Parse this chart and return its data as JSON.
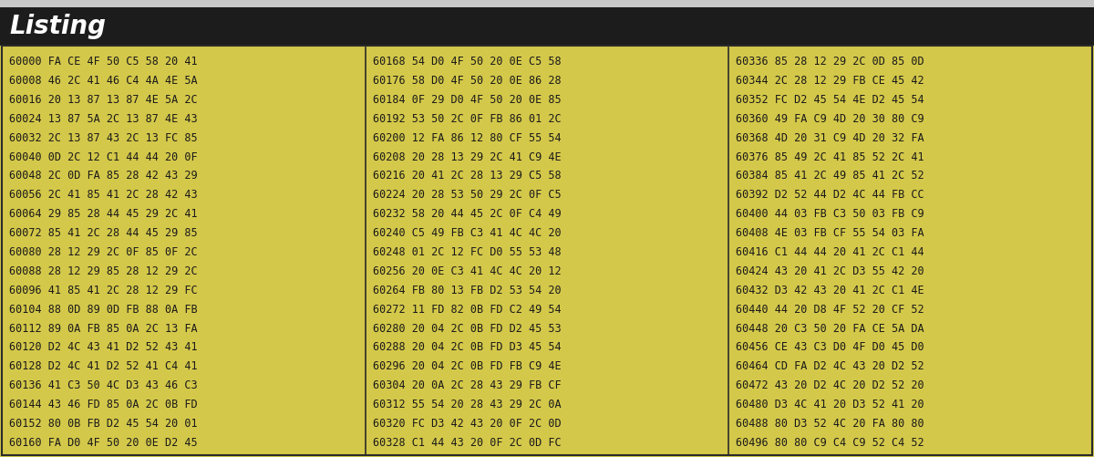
{
  "title": "Listing",
  "top_bar_color": "#c8c8c8",
  "title_bg": "#1c1c1c",
  "title_color": "#ffffff",
  "body_bg": "#d4c84a",
  "text_color": "#1a1a1a",
  "border_color": "#2a2a2a",
  "divider_color": "#2a2a2a",
  "font_size": 8.5,
  "title_font_size": 20,
  "top_bar_height": 8,
  "title_bar_height": 42,
  "columns": [
    [
      "60000 FA CE 4F 50 C5 58 20 41",
      "60008 46 2C 41 46 C4 4A 4E 5A",
      "60016 20 13 87 13 87 4E 5A 2C",
      "60024 13 87 5A 2C 13 87 4E 43",
      "60032 2C 13 87 43 2C 13 FC 85",
      "60040 0D 2C 12 C1 44 44 20 0F",
      "60048 2C 0D FA 85 28 42 43 29",
      "60056 2C 41 85 41 2C 28 42 43",
      "60064 29 85 28 44 45 29 2C 41",
      "60072 85 41 2C 28 44 45 29 85",
      "60080 28 12 29 2C 0F 85 0F 2C",
      "60088 28 12 29 85 28 12 29 2C",
      "60096 41 85 41 2C 28 12 29 FC",
      "60104 88 0D 89 0D FB 88 0A FB",
      "60112 89 0A FB 85 0A 2C 13 FA",
      "60120 D2 4C 43 41 D2 52 43 41",
      "60128 D2 4C 41 D2 52 41 C4 41",
      "60136 41 C3 50 4C D3 43 46 C3",
      "60144 43 46 FD 85 0A 2C 0B FD",
      "60152 80 0B FB D2 45 54 20 01",
      "60160 FA D0 4F 50 20 0E D2 45"
    ],
    [
      "60168 54 D0 4F 50 20 0E C5 58",
      "60176 58 D0 4F 50 20 0E 86 28",
      "60184 0F 29 D0 4F 50 20 0E 85",
      "60192 53 50 2C 0F FB 86 01 2C",
      "60200 12 FA 86 12 80 CF 55 54",
      "60208 20 28 13 29 2C 41 C9 4E",
      "60216 20 41 2C 28 13 29 C5 58",
      "60224 20 28 53 50 29 2C 0F C5",
      "60232 58 20 44 45 2C 0F C4 49",
      "60240 C5 49 FB C3 41 4C 4C 20",
      "60248 01 2C 12 FC D0 55 53 48",
      "60256 20 0E C3 41 4C 4C 20 12",
      "60264 FB 80 13 FB D2 53 54 20",
      "60272 11 FD 82 0B FD C2 49 54",
      "60280 20 04 2C 0B FD D2 45 53",
      "60288 20 04 2C 0B FD D3 45 54",
      "60296 20 04 2C 0B FD FB C9 4E",
      "60304 20 0A 2C 28 43 29 FB CF",
      "60312 55 54 20 28 43 29 2C 0A",
      "60320 FC D3 42 43 20 0F 2C 0D",
      "60328 C1 44 43 20 0F 2C 0D FC"
    ],
    [
      "60336 85 28 12 29 2C 0D 85 0D",
      "60344 2C 28 12 29 FB CE 45 42",
      "60352 FC D2 45 54 4E D2 45 54",
      "60360 49 FA C9 4D 20 30 80 C9",
      "60368 4D 20 31 C9 4D 20 32 FA",
      "60376 85 49 2C 41 85 52 2C 41",
      "60384 85 41 2C 49 85 41 2C 52",
      "60392 D2 52 44 D2 4C 44 FB CC",
      "60400 44 03 FB C3 50 03 FB C9",
      "60408 4E 03 FB CF 55 54 03 FA",
      "60416 C1 44 44 20 41 2C C1 44",
      "60424 43 20 41 2C D3 55 42 20",
      "60432 D3 42 43 20 41 2C C1 4E",
      "60440 44 20 D8 4F 52 20 CF 52",
      "60448 20 C3 50 20 FA CE 5A DA",
      "60456 CE 43 C3 D0 4F D0 45 D0",
      "60464 CD FA D2 4C 43 20 D2 52",
      "60472 43 20 D2 4C 20 D2 52 20",
      "60480 D3 4C 41 20 D3 52 41 20",
      "60488 80 D3 52 4C 20 FA 80 80",
      "60496 80 80 C9 C4 C9 52 C4 52"
    ]
  ]
}
